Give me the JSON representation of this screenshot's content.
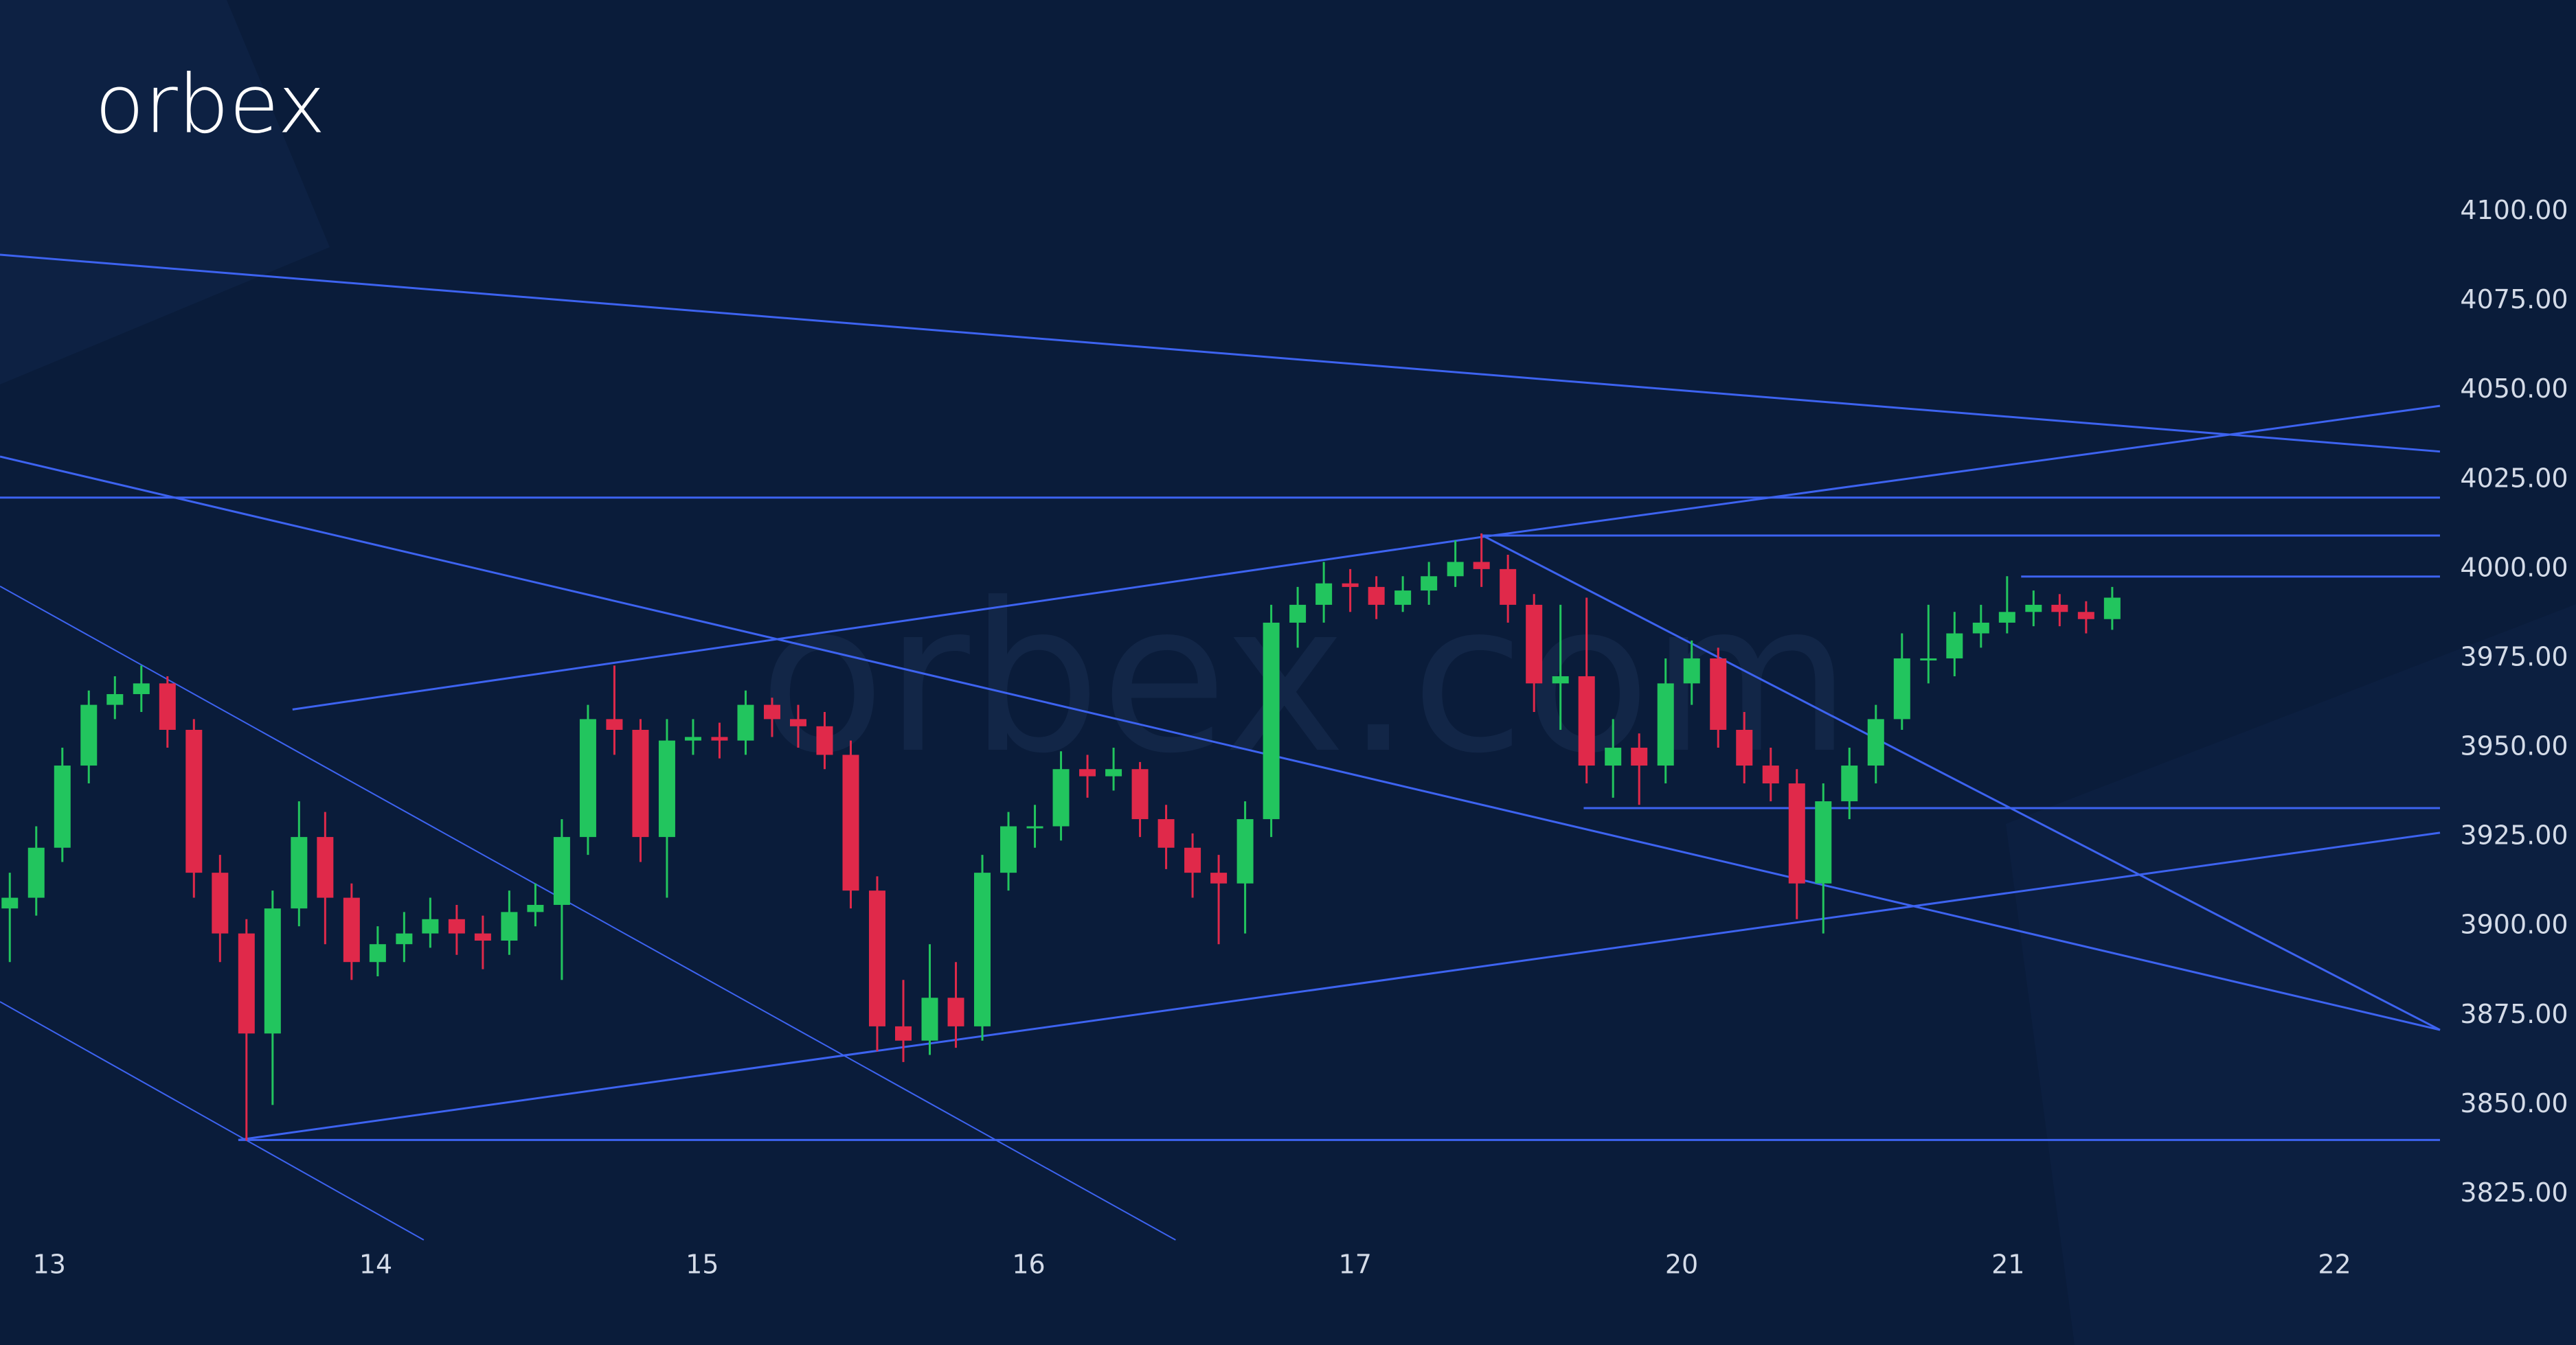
{
  "chart_data": {
    "type": "candlestick",
    "logo": "orbex",
    "watermark": "orbex.com",
    "x": [
      -0.121,
      -0.04,
      0.04,
      0.121,
      0.201,
      0.282,
      0.362,
      0.443,
      0.523,
      0.604,
      0.684,
      0.765,
      0.845,
      0.926,
      1.006,
      1.087,
      1.167,
      1.248,
      1.328,
      1.409,
      1.489,
      1.57,
      1.65,
      1.731,
      1.811,
      1.892,
      1.972,
      2.053,
      2.133,
      2.214,
      2.294,
      2.375,
      2.455,
      2.536,
      2.616,
      2.697,
      2.777,
      2.858,
      2.938,
      3.019,
      3.099,
      3.18,
      3.26,
      3.341,
      3.421,
      3.502,
      3.582,
      3.663,
      3.743,
      3.824,
      3.904,
      3.985,
      4.065,
      4.146,
      4.226,
      4.307,
      4.387,
      4.468,
      4.548,
      4.629,
      4.709,
      4.79,
      4.87,
      4.951,
      5.031,
      5.112,
      5.192,
      5.273,
      5.353,
      5.434,
      5.514,
      5.595,
      5.675,
      5.756,
      5.836,
      5.917,
      5.997,
      6.078,
      6.158,
      6.239,
      6.319
    ],
    "open": [
      3905,
      3908,
      3922,
      3945,
      3962,
      3965,
      3968,
      3955,
      3915,
      3898,
      3870,
      3905,
      3925,
      3908,
      3890,
      3895,
      3898,
      3902,
      3898,
      3896,
      3904,
      3906,
      3925,
      3958,
      3955,
      3925,
      3952,
      3953,
      3952,
      3962,
      3958,
      3956,
      3948,
      3910,
      3872,
      3868,
      3880,
      3872,
      3915,
      3928,
      3928,
      3944,
      3942,
      3944,
      3930,
      3922,
      3915,
      3912,
      3930,
      3985,
      3990,
      3996,
      3995,
      3990,
      3994,
      3998,
      4002,
      4000,
      3990,
      3968,
      3970,
      3945,
      3950,
      3945,
      3968,
      3975,
      3955,
      3945,
      3940,
      3912,
      3935,
      3945,
      3958,
      3975,
      3975,
      3982,
      3985,
      3988,
      3990,
      3988,
      3986
    ],
    "high": [
      3915,
      3928,
      3950,
      3966,
      3970,
      3973,
      3970,
      3958,
      3920,
      3902,
      3910,
      3935,
      3932,
      3912,
      3900,
      3904,
      3908,
      3906,
      3903,
      3910,
      3912,
      3930,
      3962,
      3973,
      3958,
      3958,
      3958,
      3957,
      3966,
      3964,
      3962,
      3960,
      3952,
      3914,
      3885,
      3895,
      3890,
      3920,
      3932,
      3934,
      3949,
      3948,
      3950,
      3946,
      3934,
      3926,
      3920,
      3935,
      3990,
      3995,
      4002,
      4000,
      3998,
      3998,
      4002,
      4008,
      4010,
      4004,
      3993,
      3990,
      3992,
      3958,
      3954,
      3975,
      3980,
      3978,
      3960,
      3950,
      3944,
      3940,
      3950,
      3962,
      3982,
      3990,
      3988,
      3990,
      3998,
      3994,
      3993,
      3991,
      3995
    ],
    "low": [
      3890,
      3903,
      3918,
      3940,
      3958,
      3960,
      3950,
      3908,
      3890,
      3840,
      3850,
      3900,
      3895,
      3885,
      3886,
      3890,
      3894,
      3892,
      3888,
      3892,
      3900,
      3885,
      3920,
      3948,
      3918,
      3908,
      3948,
      3947,
      3948,
      3953,
      3950,
      3944,
      3905,
      3865,
      3862,
      3864,
      3866,
      3868,
      3910,
      3922,
      3924,
      3936,
      3938,
      3925,
      3916,
      3908,
      3895,
      3898,
      3925,
      3978,
      3985,
      3988,
      3986,
      3988,
      3990,
      3995,
      3995,
      3985,
      3960,
      3955,
      3940,
      3936,
      3934,
      3940,
      3962,
      3950,
      3940,
      3935,
      3902,
      3898,
      3930,
      3940,
      3955,
      3968,
      3970,
      3978,
      3982,
      3984,
      3984,
      3982,
      3983
    ],
    "close": [
      3908,
      3922,
      3945,
      3962,
      3965,
      3968,
      3955,
      3915,
      3898,
      3870,
      3905,
      3925,
      3908,
      3890,
      3895,
      3898,
      3902,
      3898,
      3896,
      3904,
      3906,
      3925,
      3958,
      3955,
      3925,
      3952,
      3953,
      3952,
      3962,
      3958,
      3956,
      3948,
      3910,
      3872,
      3868,
      3880,
      3872,
      3915,
      3928,
      3928,
      3944,
      3942,
      3944,
      3930,
      3922,
      3915,
      3912,
      3930,
      3985,
      3990,
      3996,
      3995,
      3990,
      3994,
      3998,
      4002,
      4000,
      3990,
      3968,
      3970,
      3945,
      3950,
      3945,
      3968,
      3975,
      3955,
      3945,
      3940,
      3912,
      3935,
      3945,
      3958,
      3975,
      3975,
      3982,
      3985,
      3988,
      3990,
      3988,
      3986,
      3992
    ],
    "up_color": "#22c55e",
    "down_color": "#e0294a",
    "line_color": "#3d63f0",
    "lines": [
      {
        "x": [
          -0.151,
          7.323
        ],
        "y": [
          4088.0,
          4032.9
        ]
      },
      {
        "x": [
          -0.151,
          7.323
        ],
        "y": [
          4020.0,
          4020.0
        ]
      },
      {
        "x": [
          0.745,
          4.39,
          7.323
        ],
        "y": [
          3960.7,
          4009.0,
          4045.7
        ]
      },
      {
        "x": [
          4.39,
          7.323
        ],
        "y": [
          4009.4,
          4009.4
        ]
      },
      {
        "x": [
          -0.151,
          7.323
        ],
        "y": [
          4031.5,
          3871.0
        ]
      },
      {
        "x": [
          4.39,
          7.323
        ],
        "y": [
          4009.4,
          3871.0
        ]
      },
      {
        "x": [
          6.04,
          7.323
        ],
        "y": [
          3997.9,
          3997.9
        ]
      },
      {
        "x": [
          4.7,
          7.323
        ],
        "y": [
          3933.1,
          3933.1
        ]
      },
      {
        "x": [
          0.579,
          7.323
        ],
        "y": [
          3840.2,
          3926.2
        ]
      },
      {
        "x": [
          0.579,
          7.323
        ],
        "y": [
          3840.2,
          3840.2
        ]
      },
      {
        "x": [
          -0.151,
          3.45
        ],
        "y": [
          3995.2,
          3812.2
        ]
      },
      {
        "x": [
          -0.151,
          1.147
        ],
        "y": [
          3878.9,
          3812.2
        ]
      }
    ],
    "xlim": [
      -0.151,
      7.323
    ],
    "ylim": [
      3782.8,
      4159.3
    ],
    "xticks": [
      {
        "value": 0,
        "label": "13"
      },
      {
        "value": 1,
        "label": "14"
      },
      {
        "value": 2,
        "label": "15"
      },
      {
        "value": 3,
        "label": "16"
      },
      {
        "value": 4,
        "label": "17"
      },
      {
        "value": 5,
        "label": "20"
      },
      {
        "value": 6,
        "label": "21"
      },
      {
        "value": 7,
        "label": "22"
      }
    ],
    "yticks": [
      {
        "value": 3825,
        "label": "3825.00"
      },
      {
        "value": 3850,
        "label": "3850.00"
      },
      {
        "value": 3875,
        "label": "3875.00"
      },
      {
        "value": 3900,
        "label": "3900.00"
      },
      {
        "value": 3925,
        "label": "3925.00"
      },
      {
        "value": 3950,
        "label": "3950.00"
      },
      {
        "value": 3975,
        "label": "3975.00"
      },
      {
        "value": 4000,
        "label": "4000.00"
      },
      {
        "value": 4025,
        "label": "4025.00"
      },
      {
        "value": 4050,
        "label": "4050.00"
      },
      {
        "value": 4075,
        "label": "4075.00"
      },
      {
        "value": 4100,
        "label": "4100.00"
      }
    ]
  }
}
